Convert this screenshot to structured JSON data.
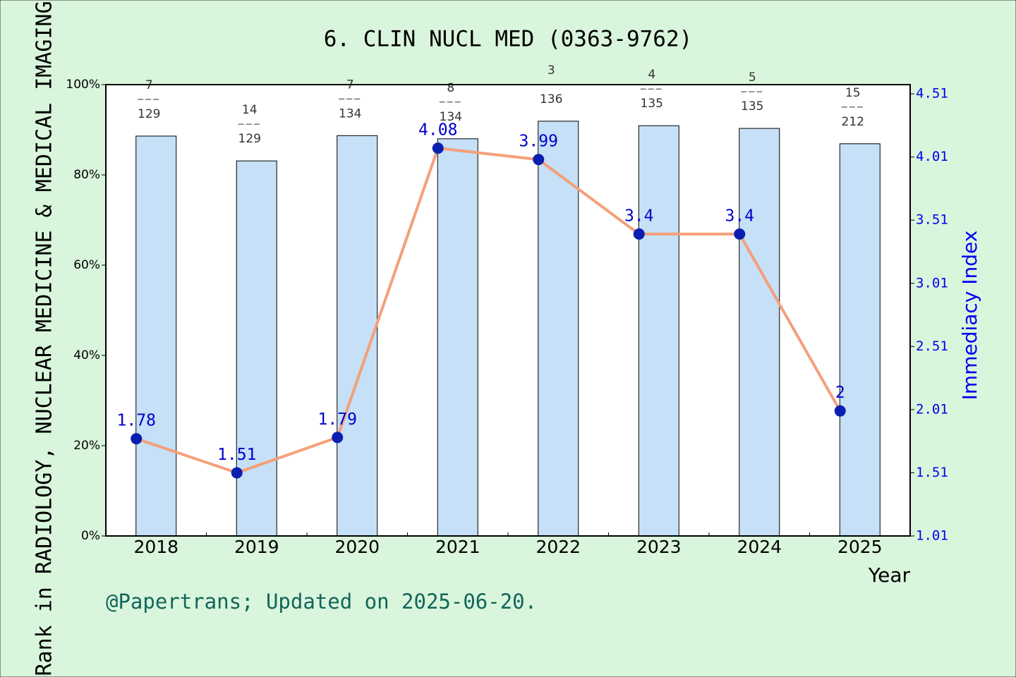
{
  "chart_data": {
    "type": "bar-line",
    "title": "6. CLIN NUCL MED (0363-9762)",
    "y_label": "Rank in RADIOLOGY, NUCLEAR MEDICINE & MEDICAL IMAGING",
    "y2_label": "Immediacy Index",
    "x_label": "Year",
    "footer": "@Papertrans; Updated on 2025-06-20.",
    "categories": [
      "2018",
      "2019",
      "2020",
      "2021",
      "2022",
      "2023",
      "2024",
      "2025"
    ],
    "series": [
      {
        "type": "bar",
        "color": "#c5e0f7",
        "values": [
          88.6,
          83.1,
          88.7,
          88.0,
          91.9,
          90.9,
          90.3,
          86.9
        ],
        "ranks": [
          7,
          14,
          7,
          8,
          3,
          4,
          5,
          15
        ],
        "totals": [
          129,
          129,
          134,
          134,
          136,
          135,
          135,
          212
        ]
      },
      {
        "type": "line",
        "axis": "y2",
        "color": "#f4a07a",
        "marker_color": "#0a1fb0",
        "label_color": "#0000cc",
        "values": [
          1.78,
          1.51,
          1.79,
          4.08,
          3.99,
          3.4,
          3.4,
          2
        ]
      }
    ],
    "ylim": [
      0,
      100
    ],
    "yticks": [
      {
        "value": 0,
        "label": "0%"
      },
      {
        "value": 20,
        "label": "20%"
      },
      {
        "value": 40,
        "label": "40%"
      },
      {
        "value": 60,
        "label": "60%"
      },
      {
        "value": 80,
        "label": "80%"
      },
      {
        "value": 100,
        "label": "100%"
      }
    ],
    "y2lim": [
      1.01,
      4.583
    ],
    "y2ticks": [
      1.01,
      1.51,
      2.01,
      2.51,
      3.01,
      3.51,
      4.01,
      4.51
    ]
  }
}
